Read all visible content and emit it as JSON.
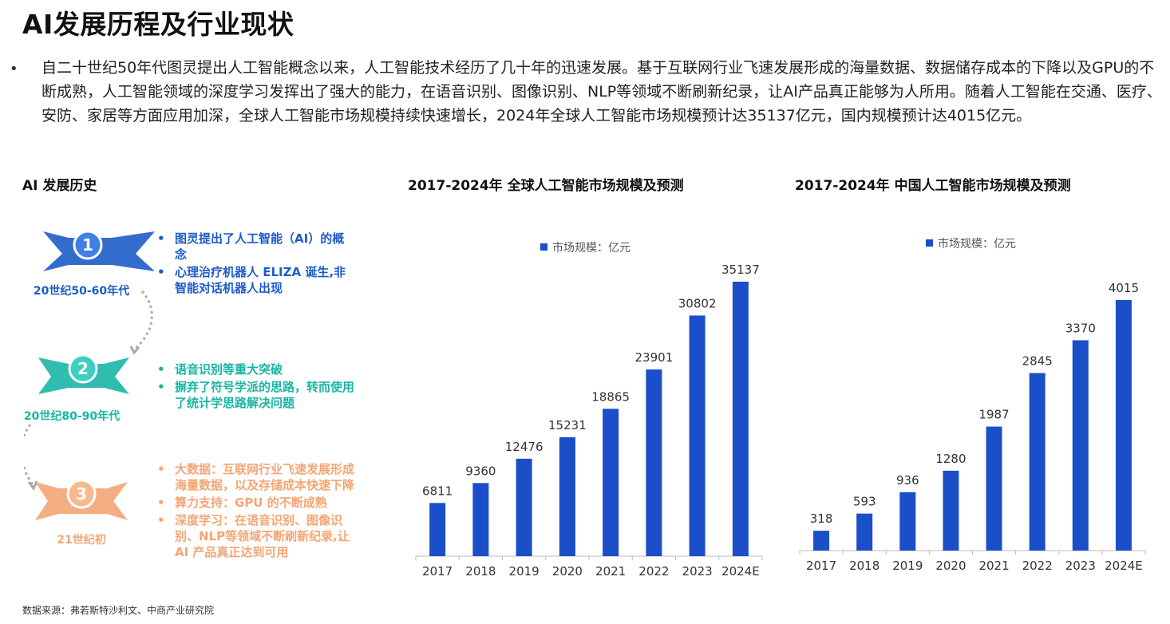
{
  "page": {
    "title": "AI发展历程及行业现状",
    "intro": "自二十世纪50年代图灵提出人工智能概念以来，人工智能技术经历了几十年的迅速发展。基于互联网行业飞速发展形成的海量数据、数据储存成本的下降以及GPU的不断成熟，人工智能领域的深度学习发挥出了强大的能力，在语音识别、图像识别、NLP等领域不断刷新纪录，让AI产品真正能够为人所用。随着人工智能在交通、医疗、安防、家居等方面应用加深，全球人工智能市场规模持续快速增长，2024年全球人工智能市场规模预计达35137亿元，国内规模预计达4015亿元。",
    "bullet": "•",
    "source": "数据来源：弗若斯特沙利文、中商产业研究院"
  },
  "history": {
    "title": "AI 发展历史",
    "stages": [
      {
        "num": "1",
        "era": "20世纪50-60年代",
        "color": "#1d5cc7",
        "items": [
          "图灵提出了人工智能（AI）的概念",
          "心理治疗机器人 ELIZA 诞生,非智能对话机器人出现"
        ]
      },
      {
        "num": "2",
        "era": "20世纪80-90年代",
        "color": "#19b5a5",
        "items": [
          "语音识别等重大突破",
          "摒弃了符号学派的思路，转而使用了统计学思路解决问题"
        ]
      },
      {
        "num": "3",
        "era": "21世纪初",
        "color": "#f4a574",
        "items": [
          "大数据：互联网行业飞速发展形成海量数据，以及存储成本快速下降",
          "算力支持：GPU 的不断成熟",
          "深度学习：在语音识别、图像识别、NLP等领域不断刷新纪录,让 AI 产品真正达到可用"
        ]
      }
    ]
  },
  "chart_data": [
    {
      "type": "bar",
      "title": "2017-2024年 全球人工智能市场规模及预测",
      "legend": "市场规模：亿元",
      "legend_position": "top",
      "categories": [
        "2017",
        "2018",
        "2019",
        "2020",
        "2021",
        "2022",
        "2023",
        "2024E"
      ],
      "values": [
        6811,
        9360,
        12476,
        15231,
        18865,
        23901,
        30802,
        35137
      ],
      "color": "#1a4fc9",
      "grid": false
    },
    {
      "type": "bar",
      "title": "2017-2024年 中国人工智能市场规模及预测",
      "legend": "市场规模：亿元",
      "legend_position": "top",
      "categories": [
        "2017",
        "2018",
        "2019",
        "2020",
        "2021",
        "2022",
        "2023",
        "2024E"
      ],
      "values": [
        318,
        593,
        936,
        1280,
        1987,
        2845,
        3370,
        4015
      ],
      "color": "#1a4fc9",
      "grid": false
    }
  ]
}
